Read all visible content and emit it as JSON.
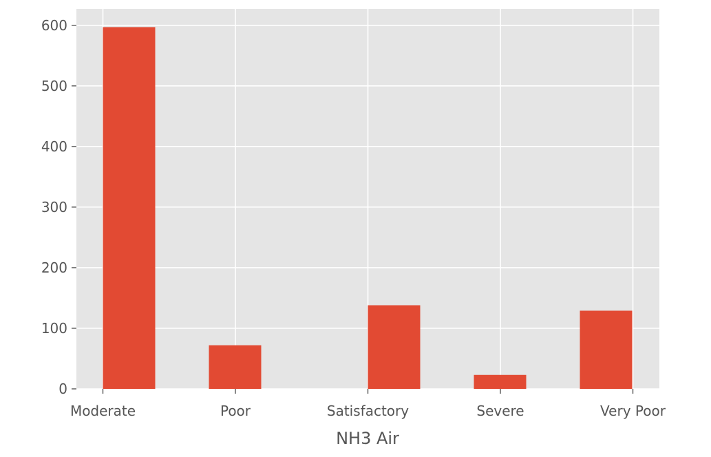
{
  "chart_data": {
    "type": "bar",
    "title": "",
    "xlabel": "NH3 Air",
    "ylabel": "",
    "categories": [
      "Moderate",
      "Poor",
      "Satisfactory",
      "Severe",
      "Very Poor"
    ],
    "x_ticks": [
      "Moderate",
      "Poor",
      "Satisfactory",
      "Severe",
      "Very Poor"
    ],
    "bins": [
      {
        "from": "Moderate",
        "count": 597
      },
      {
        "from": "Poor",
        "count": 72
      },
      {
        "from": "Satisfactory",
        "count": 0
      },
      {
        "from": "Satisfactory",
        "count": 138
      },
      {
        "from": "Severe",
        "count": 0
      },
      {
        "from": "Severe",
        "count": 23
      },
      {
        "from": "Very Poor",
        "count": 129
      }
    ],
    "values": [
      597,
      72,
      138,
      23,
      129
    ],
    "ylim": [
      0,
      627
    ],
    "y_ticks": [
      0,
      100,
      200,
      300,
      400,
      500,
      600
    ],
    "grid": true,
    "style": "ggplot",
    "colors": {
      "bar": "#E24A33",
      "plot_background": "#E5E5E5",
      "grid": "#FFFFFF",
      "text": "#555555"
    }
  }
}
